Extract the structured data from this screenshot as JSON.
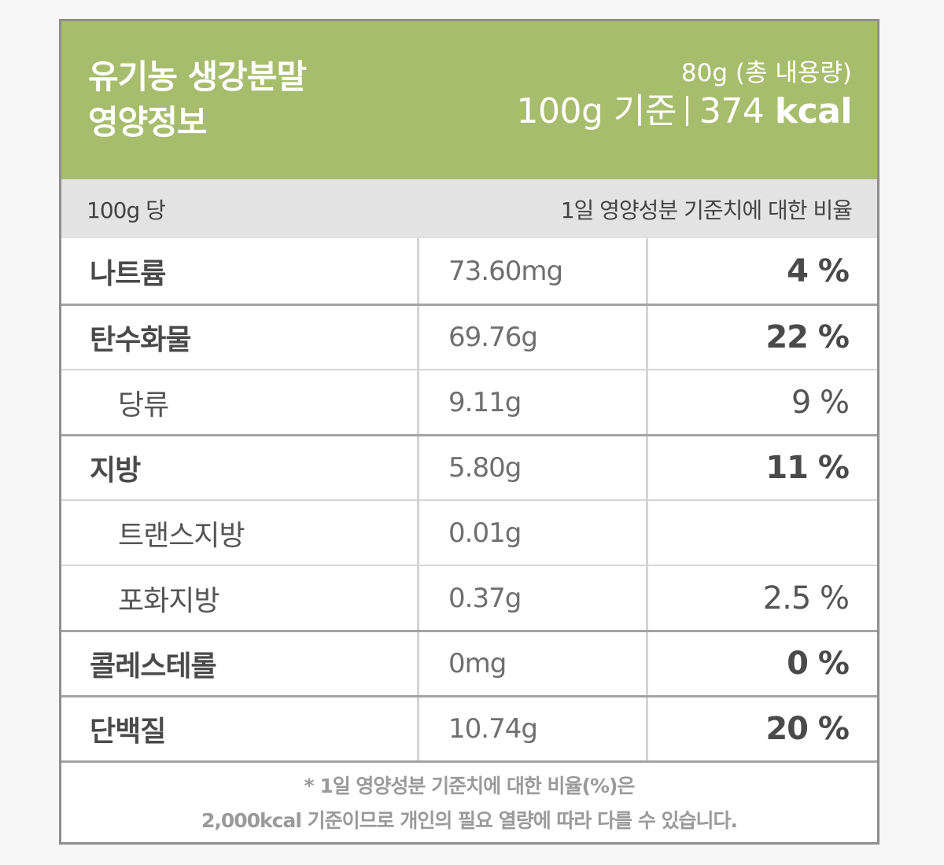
{
  "header": {
    "title_line1": "유기농 생강분말",
    "title_line2": "영양정보",
    "total_content": "80g (총 내용량)",
    "basis_amount": "100g 기준",
    "calories_value": "374",
    "calories_unit": "kcal",
    "background_color": "#a7bd6e"
  },
  "subheader": {
    "left": "100g 당",
    "right": "1일 영양성분 기준치에 대한 비율"
  },
  "rows": [
    {
      "name": "나트륨",
      "amount": "73.60mg",
      "percent": "4 %",
      "sub": false
    },
    {
      "name": "탄수화물",
      "amount": "69.76g",
      "percent": "22 %",
      "sub": false
    },
    {
      "name": "당류",
      "amount": "9.11g",
      "percent": "9 %",
      "sub": true
    },
    {
      "name": "지방",
      "amount": "5.80g",
      "percent": "11 %",
      "sub": false
    },
    {
      "name": "트랜스지방",
      "amount": "0.01g",
      "percent": "",
      "sub": true
    },
    {
      "name": "포화지방",
      "amount": "0.37g",
      "percent": "2.5 %",
      "sub": true
    },
    {
      "name": "콜레스테롤",
      "amount": "0mg",
      "percent": "0 %",
      "sub": false
    },
    {
      "name": "단백질",
      "amount": "10.74g",
      "percent": "20 %",
      "sub": false
    }
  ],
  "footer": {
    "line1": "* 1일 영양성분 기준치에 대한 비율(%)은",
    "line2": "2,000kcal 기준이므로 개인의 필요 열량에 따라 다를 수 있습니다."
  }
}
